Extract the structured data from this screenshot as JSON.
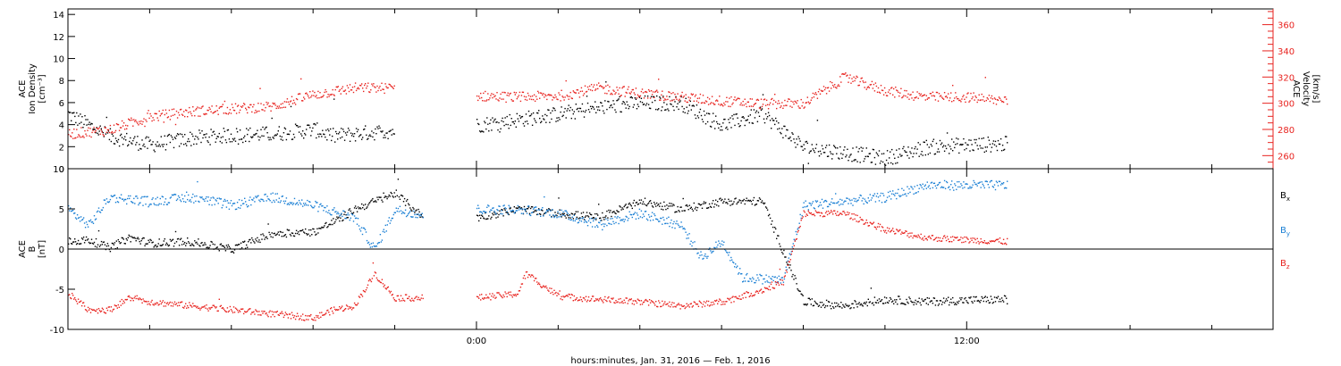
{
  "chart_data": {
    "type": "scatter",
    "xlabel": "hours:minutes, Jan. 31, 2016 — Feb.  1, 2016",
    "x_range_hours": [
      -10,
      19.5
    ],
    "x_major_ticks": [
      {
        "hour": 0,
        "label": "0:00"
      },
      {
        "hour": 12,
        "label": "12:00"
      }
    ],
    "x_minor_tick_step_hours": 2,
    "panels": [
      {
        "id": "top",
        "left_axis": {
          "label_lines": [
            "ACE",
            "Ion Density",
            "[cm⁻³]"
          ],
          "ylim": [
            0,
            14.5
          ],
          "ticks": [
            0,
            2,
            4,
            6,
            8,
            10,
            12,
            14
          ],
          "color": "#000000"
        },
        "right_axis": {
          "label_lines": [
            "ACE",
            "Velocity",
            "[km/s]"
          ],
          "ylim": [
            250,
            372
          ],
          "ticks": [
            260,
            280,
            300,
            320,
            340,
            360
          ],
          "color": "#e8231f"
        },
        "series": [
          {
            "axis": "left",
            "color": "#000000",
            "x": [
              -10,
              -9,
              -8,
              -7,
              -6,
              -5,
              -4,
              -3.5,
              -3,
              -2,
              -1,
              0,
              1,
              2,
              3,
              4,
              5,
              6,
              7,
              8,
              9,
              10,
              11,
              12,
              13
            ],
            "y": [
              5,
              3,
              2.2,
              2.8,
              3.1,
              3.2,
              3.6,
              3,
              3.2,
              3.5,
              null,
              4,
              4.5,
              5,
              5.6,
              6,
              6,
              4,
              5,
              2,
              1.5,
              1,
              2,
              2.2,
              2.3
            ],
            "jitter": 0.7
          },
          {
            "axis": "right",
            "color": "#e8231f",
            "x": [
              -10,
              -9,
              -8,
              -7,
              -6,
              -5,
              -4,
              -3,
              -2,
              -1,
              0,
              1,
              2,
              3,
              4,
              5,
              6,
              7,
              8,
              9,
              10,
              11,
              12,
              13
            ],
            "y": [
              277,
              280,
              290,
              294,
              296,
              298,
              307,
              312,
              312,
              null,
              306,
              305,
              306,
              312,
              308,
              305,
              302,
              300,
              300,
              320,
              310,
              305,
              305,
              302
            ],
            "jitter": 4
          }
        ]
      },
      {
        "id": "bottom",
        "left_axis": {
          "label_lines": [
            "ACE",
            "B",
            "[nT]"
          ],
          "ylim": [
            -10,
            10
          ],
          "ticks": [
            -10,
            -5,
            0,
            5,
            10
          ],
          "zero_line": true
        },
        "legend": [
          {
            "text": "B",
            "sub": "x",
            "color": "#000000"
          },
          {
            "text": "B",
            "sub": "y",
            "color": "#1a7fd4"
          },
          {
            "text": "B",
            "sub": "z",
            "color": "#e8231f"
          }
        ],
        "series": [
          {
            "name": "Bx",
            "color": "#000000",
            "x": [
              -10,
              -9.5,
              -9,
              -8.5,
              -8,
              -7,
              -6,
              -5,
              -4,
              -3.3,
              -3,
              -2,
              -1.3,
              -1,
              0,
              1,
              2,
              3,
              4,
              5,
              6,
              7,
              8,
              9,
              10,
              11,
              12,
              13
            ],
            "y": [
              1,
              1.2,
              0.2,
              1.5,
              0.8,
              1,
              0,
              2,
              2.2,
              4,
              5,
              7,
              4,
              null,
              4,
              5,
              4.5,
              4,
              6,
              5,
              6,
              6,
              -6.5,
              -7,
              -6.2,
              -6.5,
              -6.3,
              -6.2
            ],
            "jitter": 0.5
          },
          {
            "name": "By",
            "color": "#1a7fd4",
            "x": [
              -10,
              -9.5,
              -9,
              -8,
              -7,
              -6,
              -5,
              -4,
              -3.3,
              -3,
              -2.5,
              -2,
              -1.3,
              -1,
              0,
              1,
              2,
              3,
              4,
              5,
              5.5,
              6,
              6.5,
              7.5,
              8,
              9,
              10,
              11,
              12,
              13
            ],
            "y": [
              5,
              3,
              6.5,
              6,
              6.5,
              5.5,
              6.5,
              5.5,
              4.4,
              4,
              0,
              5,
              4.3,
              null,
              5,
              5,
              4.5,
              3.2,
              4.5,
              3,
              -1,
              1,
              -3.5,
              -3.8,
              5.5,
              6,
              6.5,
              8,
              8,
              8
            ],
            "jitter": 0.6
          },
          {
            "name": "Bz",
            "color": "#e8231f",
            "x": [
              -10,
              -9.5,
              -9,
              -8.5,
              -8,
              -7,
              -6,
              -5,
              -4,
              -3.5,
              -3,
              -2.5,
              -2,
              -1.3,
              -1,
              0,
              1,
              1.2,
              2,
              3,
              4,
              5,
              6,
              7,
              7.5,
              8,
              9,
              10,
              11,
              12,
              13
            ],
            "y": [
              -5.5,
              -7.5,
              -7.5,
              -6,
              -6.5,
              -7,
              -7.5,
              -8,
              -8.5,
              -7.5,
              -7,
              -3,
              -6,
              -6,
              null,
              -6,
              -5.5,
              -3,
              -5.8,
              -6.2,
              -6.5,
              -7,
              -6.5,
              -5,
              -4,
              4.5,
              4.5,
              2.5,
              1.5,
              1.2,
              1
            ],
            "jitter": 0.4
          }
        ]
      }
    ],
    "grid": false
  }
}
